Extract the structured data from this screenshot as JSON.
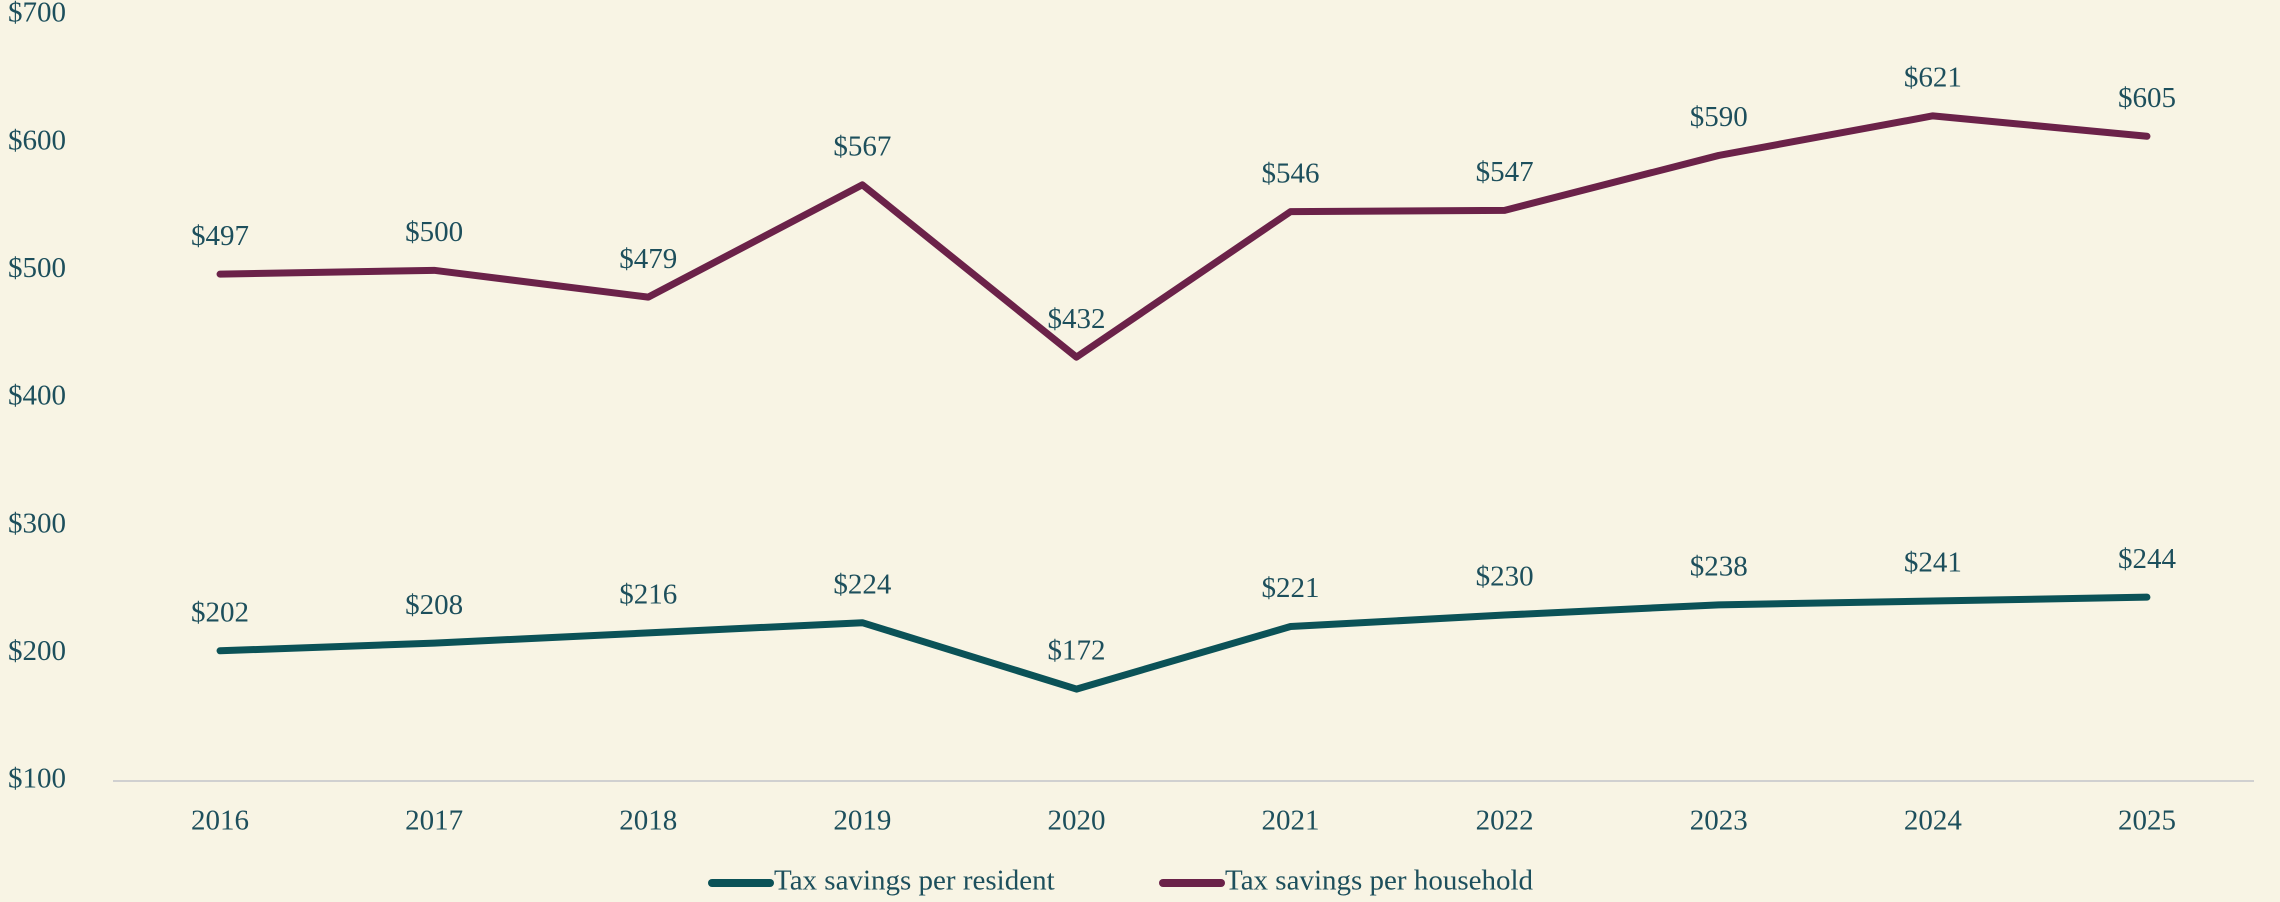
{
  "chart_data": {
    "type": "line",
    "categories": [
      "2016",
      "2017",
      "2018",
      "2019",
      "2020",
      "2021",
      "2022",
      "2023",
      "2024",
      "2025"
    ],
    "series": [
      {
        "name": "Tax savings per resident",
        "color": "#0b5257",
        "values": [
          202,
          208,
          216,
          224,
          172,
          221,
          230,
          238,
          241,
          244
        ],
        "value_labels": [
          "$202",
          "$208",
          "$216",
          "$224",
          "$172",
          "$221",
          "$230",
          "$238",
          "$241",
          "$244"
        ]
      },
      {
        "name": "Tax savings per household",
        "color": "#6b2249",
        "values": [
          497,
          500,
          479,
          567,
          432,
          546,
          547,
          590,
          621,
          605
        ],
        "value_labels": [
          "$497",
          "$500",
          "$479",
          "$567",
          "$432",
          "$546",
          "$547",
          "$590",
          "$621",
          "$605"
        ]
      }
    ],
    "ylim": [
      100,
      700
    ],
    "yticks": [
      {
        "value": 100,
        "label": "$100"
      },
      {
        "value": 200,
        "label": "$200"
      },
      {
        "value": 300,
        "label": "$300"
      },
      {
        "value": 400,
        "label": "$400"
      },
      {
        "value": 500,
        "label": "$500"
      },
      {
        "value": 600,
        "label": "$600"
      },
      {
        "value": 700,
        "label": "$700"
      }
    ],
    "grid": false,
    "legend": "bottom"
  }
}
